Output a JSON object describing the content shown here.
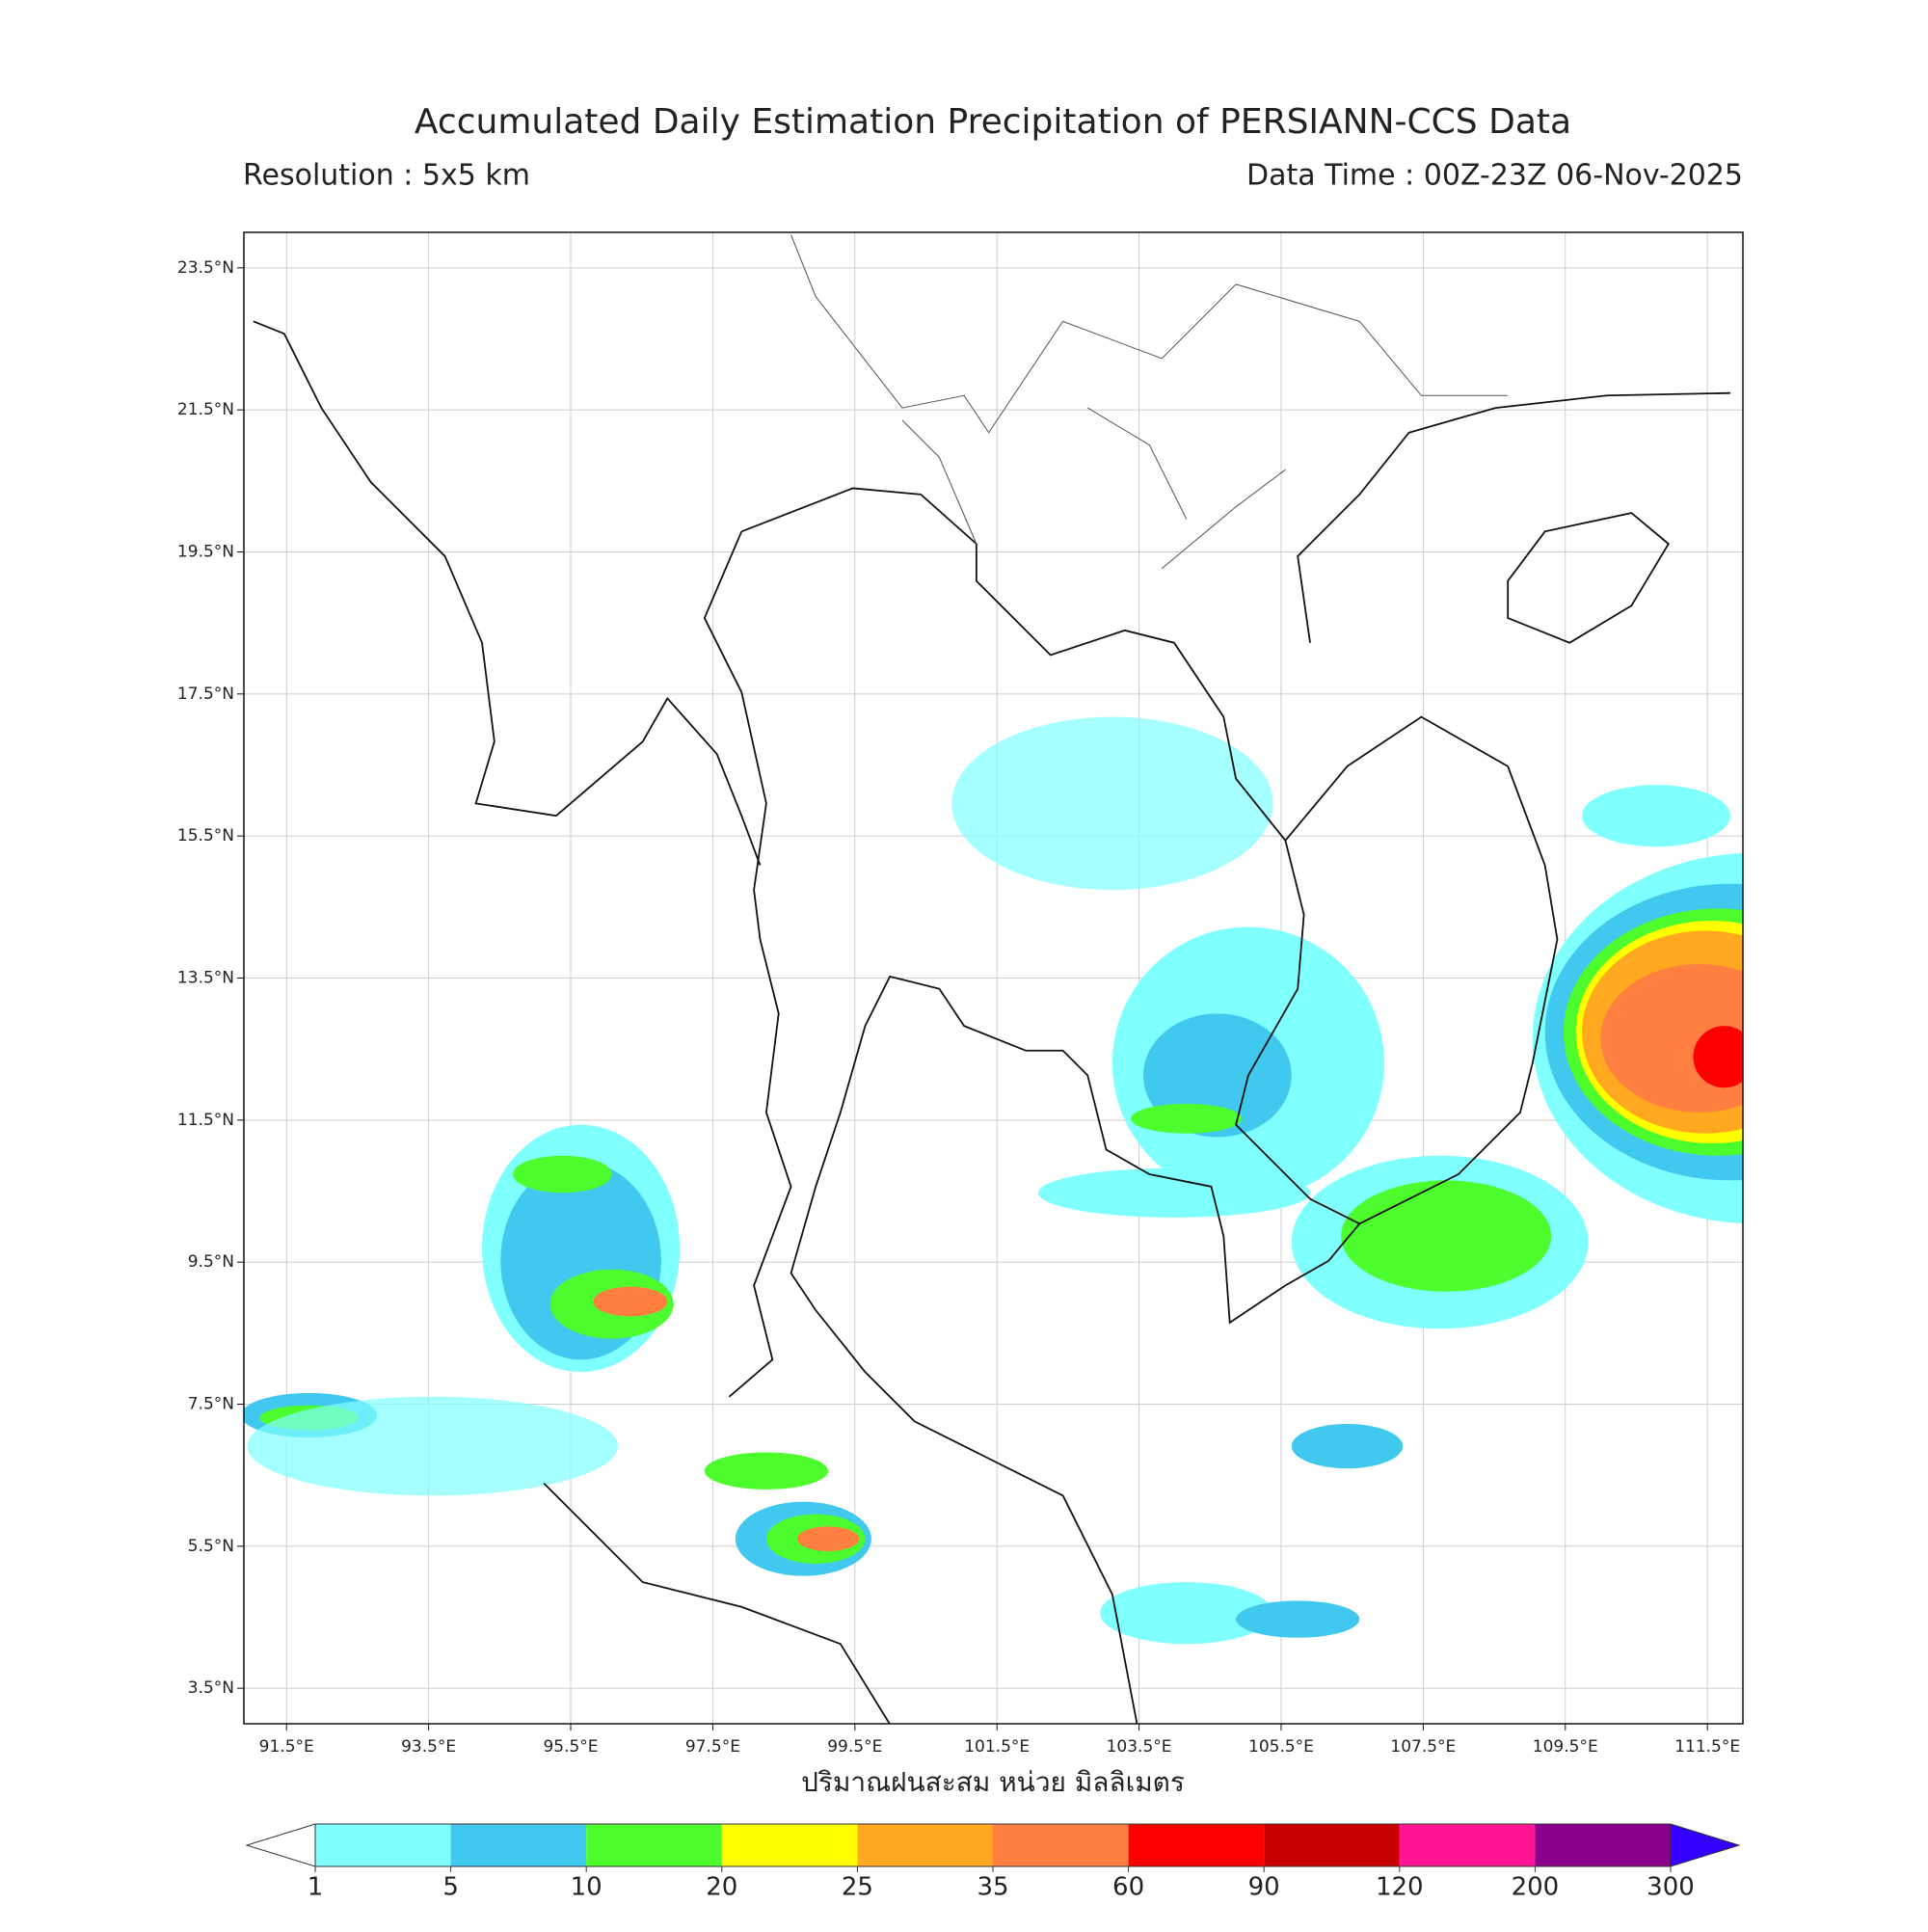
{
  "title": "Accumulated Daily Estimation Precipitation of PERSIANN-CCS Data",
  "resolution": "Resolution : 5x5 km",
  "data_time": "Data Time : 00Z-23Z 06-Nov-2025",
  "map": {
    "xlim": [
      90.9,
      112.0
    ],
    "ylim": [
      3.0,
      24.0
    ],
    "grid": true,
    "xticks": [
      {
        "value": 91.5,
        "label": "91.5°E"
      },
      {
        "value": 93.5,
        "label": "93.5°E"
      },
      {
        "value": 95.5,
        "label": "95.5°E"
      },
      {
        "value": 97.5,
        "label": "97.5°E"
      },
      {
        "value": 99.5,
        "label": "99.5°E"
      },
      {
        "value": 101.5,
        "label": "101.5°E"
      },
      {
        "value": 103.5,
        "label": "103.5°E"
      },
      {
        "value": 105.5,
        "label": "105.5°E"
      },
      {
        "value": 107.5,
        "label": "107.5°E"
      },
      {
        "value": 109.5,
        "label": "109.5°E"
      },
      {
        "value": 111.5,
        "label": "111.5°E"
      }
    ],
    "yticks": [
      {
        "value": 3.5,
        "label": "3.5°N"
      },
      {
        "value": 5.5,
        "label": "5.5°N"
      },
      {
        "value": 7.5,
        "label": "7.5°N"
      },
      {
        "value": 9.5,
        "label": "9.5°N"
      },
      {
        "value": 11.5,
        "label": "11.5°N"
      },
      {
        "value": 13.5,
        "label": "13.5°N"
      },
      {
        "value": 15.5,
        "label": "15.5°N"
      },
      {
        "value": 17.5,
        "label": "17.5°N"
      },
      {
        "value": 19.5,
        "label": "19.5°N"
      },
      {
        "value": 21.5,
        "label": "21.5°N"
      },
      {
        "value": 23.5,
        "label": "23.5°N"
      }
    ]
  },
  "colorbar": {
    "label": "ปริมาณฝนสะสม หน่วย มิลลิเมตร",
    "levels": [
      1,
      5,
      10,
      20,
      25,
      35,
      60,
      90,
      120,
      200,
      300
    ],
    "colors": [
      "#80ffff",
      "#40c8ee",
      "#4cfc2c",
      "#ffff00",
      "#ffa820",
      "#ff7f40",
      "#ff0000",
      "#c80000",
      "#ff1493",
      "#8b008b"
    ],
    "under_color": "#ffffff",
    "over_color": "#3300ff"
  }
}
